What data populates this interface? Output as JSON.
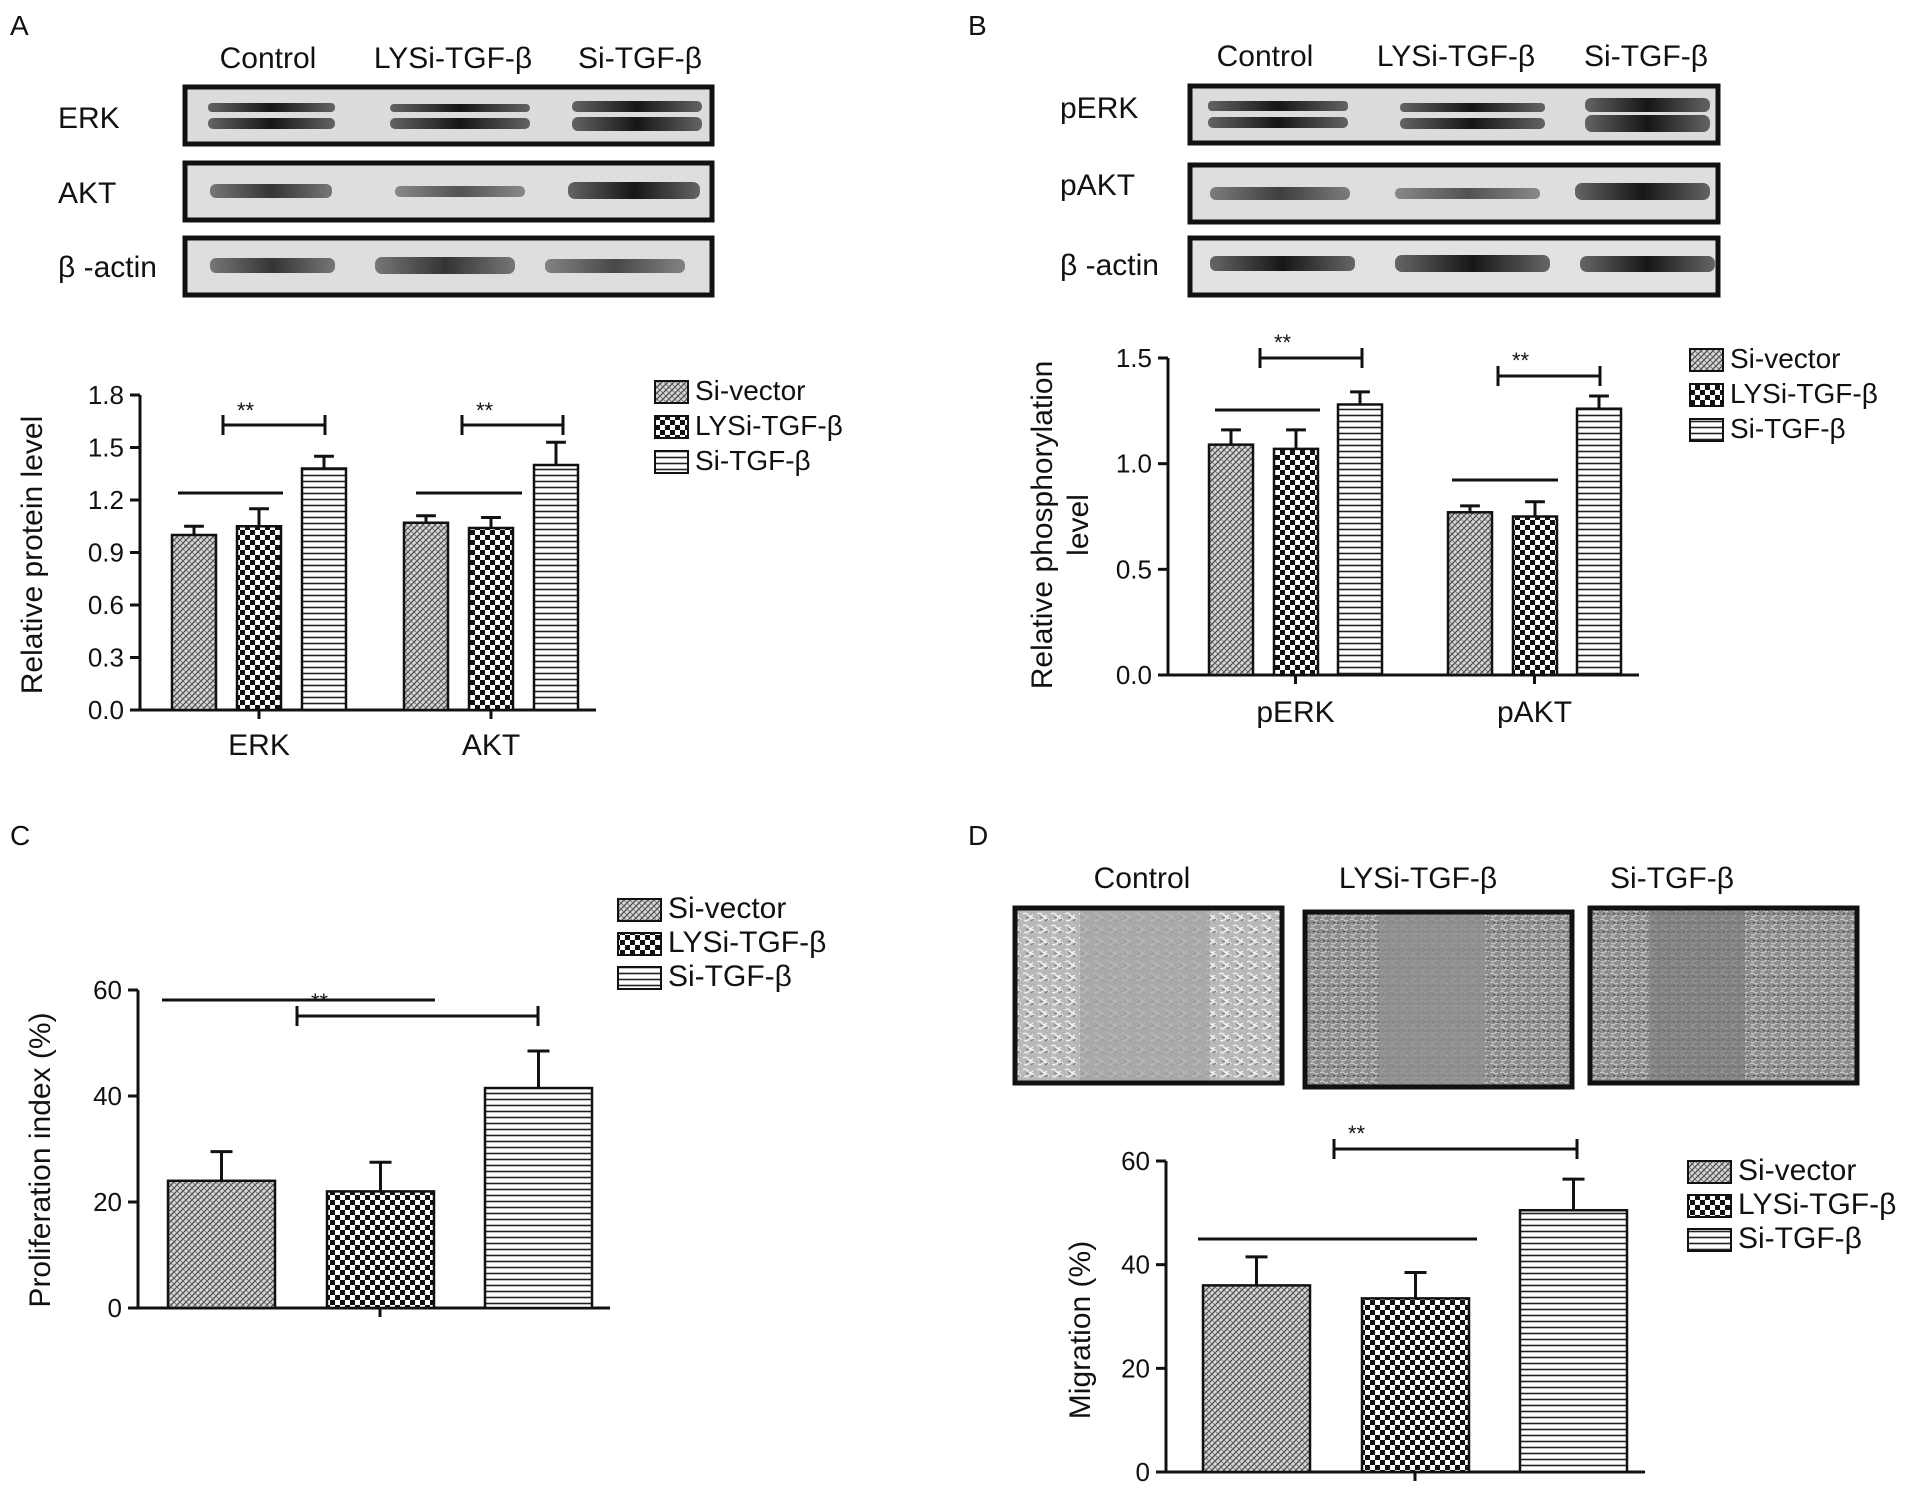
{
  "panels": {
    "A": {
      "letter": "A",
      "blot": {
        "lanes": [
          "Control",
          "LYSi-TGF-β",
          "Si-TGF-β"
        ],
        "rows": [
          "ERK",
          "AKT",
          "β -actin"
        ]
      }
    },
    "B": {
      "letter": "B",
      "blot": {
        "lanes": [
          "Control",
          "LYSi-TGF-β",
          "Si-TGF-β"
        ],
        "rows": [
          "pERK",
          "pAKT",
          "β -actin"
        ]
      }
    },
    "C": {
      "letter": "C"
    },
    "D": {
      "letter": "D",
      "images": {
        "labels": [
          "Control",
          "LYSi-TGF-β",
          "Si-TGF-β"
        ]
      }
    }
  },
  "significance_mark": "**",
  "chart_data": [
    {
      "panel": "A",
      "type": "bar",
      "ylabel": "Relative protein level",
      "xlabel": "",
      "categories": [
        "ERK",
        "AKT"
      ],
      "series": [
        {
          "name": "Si-vector",
          "pattern": "hatch-fine",
          "values": [
            1.0,
            1.07
          ],
          "errors": [
            0.05,
            0.04
          ]
        },
        {
          "name": "LYSi-TGF-β",
          "pattern": "checkerboard",
          "values": [
            1.05,
            1.04
          ],
          "errors": [
            0.1,
            0.06
          ]
        },
        {
          "name": "Si-TGF-β",
          "pattern": "horizontal",
          "values": [
            1.38,
            1.4
          ],
          "errors": [
            0.07,
            0.13
          ]
        }
      ],
      "ylim": [
        0,
        1.8
      ],
      "yticks": [
        "0.0",
        "0.3",
        "0.6",
        "0.9",
        "1.2",
        "1.5",
        "1.8"
      ],
      "legend": "right",
      "grid": false
    },
    {
      "panel": "B",
      "type": "bar",
      "ylabel": "Relative phosphorylation level",
      "xlabel": "",
      "categories": [
        "pERK",
        "pAKT"
      ],
      "series": [
        {
          "name": "Si-vector",
          "pattern": "hatch-fine",
          "values": [
            1.09,
            0.77
          ],
          "errors": [
            0.07,
            0.03
          ]
        },
        {
          "name": "LYSi-TGF-β",
          "pattern": "checkerboard",
          "values": [
            1.07,
            0.75
          ],
          "errors": [
            0.09,
            0.07
          ]
        },
        {
          "name": "Si-TGF-β",
          "pattern": "horizontal",
          "values": [
            1.28,
            1.26
          ],
          "errors": [
            0.06,
            0.06
          ]
        }
      ],
      "ylim": [
        0,
        1.5
      ],
      "yticks": [
        "0.0",
        "0.5",
        "1.0",
        "1.5"
      ],
      "legend": "right",
      "grid": false
    },
    {
      "panel": "C",
      "type": "bar",
      "ylabel": "Proliferation index (%)",
      "xlabel": "",
      "categories": [
        ""
      ],
      "series": [
        {
          "name": "Si-vector",
          "pattern": "hatch-fine",
          "values": [
            24
          ],
          "errors": [
            5.5
          ]
        },
        {
          "name": "LYSi-TGF-β",
          "pattern": "checkerboard",
          "values": [
            22
          ],
          "errors": [
            5.5
          ]
        },
        {
          "name": "Si-TGF-β",
          "pattern": "horizontal",
          "values": [
            41.5
          ],
          "errors": [
            7
          ]
        }
      ],
      "ylim": [
        0,
        60
      ],
      "yticks": [
        "0",
        "20",
        "40",
        "60"
      ],
      "legend": "top-right",
      "grid": false
    },
    {
      "panel": "D",
      "type": "bar",
      "ylabel": "Migration (%)",
      "xlabel": "",
      "categories": [
        ""
      ],
      "series": [
        {
          "name": "Si-vector",
          "pattern": "hatch-fine",
          "values": [
            36
          ],
          "errors": [
            5.5
          ]
        },
        {
          "name": "LYSi-TGF-β",
          "pattern": "checkerboard",
          "values": [
            33.5
          ],
          "errors": [
            5
          ]
        },
        {
          "name": "Si-TGF-β",
          "pattern": "horizontal",
          "values": [
            50.5
          ],
          "errors": [
            6
          ]
        }
      ],
      "ylim": [
        0,
        60
      ],
      "yticks": [
        "0",
        "20",
        "40",
        "60"
      ],
      "legend": "right",
      "grid": false
    }
  ]
}
